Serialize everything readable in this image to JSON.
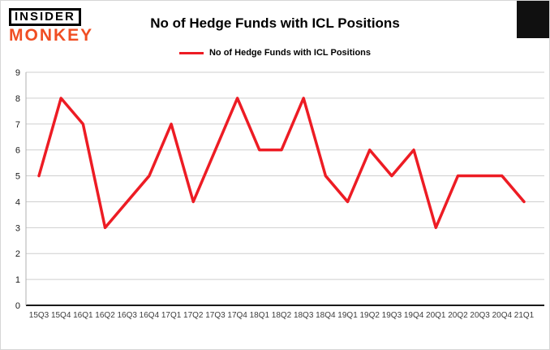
{
  "logo": {
    "line1": "INSIDER",
    "line2": "MONKEY",
    "monkey_color": "#f04e23"
  },
  "header": {
    "title": "No of Hedge Funds with ICL Positions"
  },
  "legend": {
    "label": "No of Hedge Funds with ICL Positions"
  },
  "colors": {
    "line": "#ed1c24",
    "grid": "#cfcfcf",
    "axis": "#1a1a1a"
  },
  "chart_data": {
    "type": "line",
    "title": "No of Hedge Funds with ICL Positions",
    "categories": [
      "15Q3",
      "15Q4",
      "16Q1",
      "16Q2",
      "16Q3",
      "16Q4",
      "17Q1",
      "17Q2",
      "17Q3",
      "17Q4",
      "18Q1",
      "18Q2",
      "18Q3",
      "18Q4",
      "19Q1",
      "19Q2",
      "19Q3",
      "19Q4",
      "20Q1",
      "20Q2",
      "20Q3",
      "20Q4",
      "21Q1"
    ],
    "values": [
      5,
      8,
      7,
      3,
      4,
      5,
      7,
      4,
      6,
      8,
      6,
      6,
      8,
      5,
      4,
      6,
      5,
      6,
      3,
      5,
      5,
      5,
      4
    ],
    "xlabel": "",
    "ylabel": "",
    "ylim": [
      0,
      9
    ],
    "yticks": [
      0,
      1,
      2,
      3,
      4,
      5,
      6,
      7,
      8,
      9
    ],
    "grid": true,
    "legend_position": "top",
    "line_color": "#ed1c24"
  }
}
